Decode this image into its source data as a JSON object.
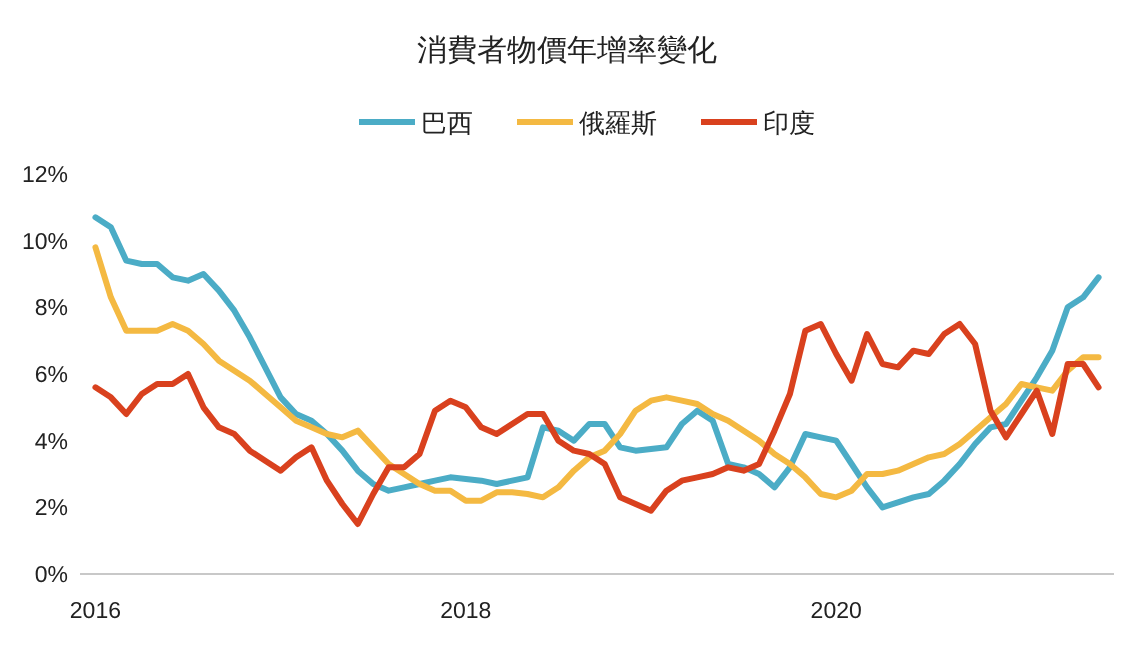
{
  "chart_data": {
    "type": "line",
    "title": "消費者物價年增率變化",
    "legend": "top",
    "grid": false,
    "x": [
      "2016-01",
      "2016-02",
      "2016-03",
      "2016-04",
      "2016-05",
      "2016-06",
      "2016-07",
      "2016-08",
      "2016-09",
      "2016-10",
      "2016-11",
      "2016-12",
      "2017-01",
      "2017-02",
      "2017-03",
      "2017-04",
      "2017-05",
      "2017-06",
      "2017-07",
      "2017-08",
      "2017-09",
      "2017-10",
      "2017-11",
      "2017-12",
      "2018-01",
      "2018-02",
      "2018-03",
      "2018-04",
      "2018-05",
      "2018-06",
      "2018-07",
      "2018-08",
      "2018-09",
      "2018-10",
      "2018-11",
      "2018-12",
      "2019-01",
      "2019-02",
      "2019-03",
      "2019-04",
      "2019-05",
      "2019-06",
      "2019-07",
      "2019-08",
      "2019-09",
      "2019-10",
      "2019-11",
      "2019-12",
      "2020-01",
      "2020-02",
      "2020-03",
      "2020-04",
      "2020-05",
      "2020-06",
      "2020-07",
      "2020-08",
      "2020-09",
      "2020-10",
      "2020-11",
      "2020-12",
      "2021-01",
      "2021-02",
      "2021-03",
      "2021-04",
      "2021-05",
      "2021-06"
    ],
    "xlim": [
      "2015-12",
      "2021-07"
    ],
    "xticks": [
      "2016",
      "2018",
      "2020"
    ],
    "ylim": [
      0,
      12
    ],
    "yticks": [
      {
        "value": 0,
        "label": "0%"
      },
      {
        "value": 2,
        "label": "2%"
      },
      {
        "value": 4,
        "label": "4%"
      },
      {
        "value": 6,
        "label": "6%"
      },
      {
        "value": 8,
        "label": "8%"
      },
      {
        "value": 10,
        "label": "10%"
      },
      {
        "value": 12,
        "label": "12%"
      }
    ],
    "series": [
      {
        "name": "巴西",
        "color": "#4bacc6",
        "values": [
          10.7,
          10.4,
          9.4,
          9.3,
          9.3,
          8.9,
          8.8,
          9.0,
          8.5,
          7.9,
          7.1,
          6.2,
          5.3,
          4.8,
          4.6,
          4.2,
          3.7,
          3.1,
          2.7,
          2.5,
          2.6,
          2.7,
          2.8,
          2.9,
          2.85,
          2.8,
          2.7,
          2.8,
          2.9,
          4.4,
          4.3,
          4.0,
          4.5,
          4.5,
          3.8,
          3.7,
          3.75,
          3.8,
          4.5,
          4.9,
          4.6,
          3.3,
          3.2,
          3.0,
          2.6,
          3.2,
          4.2,
          4.1,
          4.0,
          3.3,
          2.6,
          2.0,
          2.15,
          2.3,
          2.4,
          2.8,
          3.3,
          3.9,
          4.4,
          4.5,
          5.2,
          5.9,
          6.7,
          8.0,
          8.3,
          8.9
        ]
      },
      {
        "name": "俄羅斯",
        "color": "#f4b942",
        "values": [
          9.8,
          8.3,
          7.3,
          7.3,
          7.3,
          7.5,
          7.3,
          6.9,
          6.4,
          6.1,
          5.8,
          5.4,
          5.0,
          4.6,
          4.4,
          4.2,
          4.1,
          4.3,
          3.8,
          3.3,
          3.0,
          2.7,
          2.5,
          2.5,
          2.2,
          2.2,
          2.45,
          2.45,
          2.4,
          2.3,
          2.6,
          3.1,
          3.5,
          3.7,
          4.2,
          4.9,
          5.2,
          5.3,
          5.2,
          5.1,
          4.8,
          4.6,
          4.3,
          4.0,
          3.6,
          3.3,
          2.9,
          2.4,
          2.3,
          2.5,
          3.0,
          3.0,
          3.1,
          3.3,
          3.5,
          3.6,
          3.9,
          4.3,
          4.7,
          5.1,
          5.7,
          5.6,
          5.5,
          6.1,
          6.5,
          6.5
        ]
      },
      {
        "name": "印度",
        "color": "#d9411e",
        "values": [
          5.6,
          5.3,
          4.8,
          5.4,
          5.7,
          5.7,
          6.0,
          5.0,
          4.4,
          4.2,
          3.7,
          3.4,
          3.1,
          3.5,
          3.8,
          2.8,
          2.1,
          1.5,
          2.4,
          3.2,
          3.2,
          3.6,
          4.9,
          5.2,
          5.0,
          4.4,
          4.2,
          4.5,
          4.8,
          4.8,
          4.0,
          3.7,
          3.6,
          3.3,
          2.3,
          2.1,
          1.9,
          2.5,
          2.8,
          2.9,
          3.0,
          3.2,
          3.1,
          3.3,
          4.3,
          5.4,
          7.3,
          7.5,
          6.6,
          5.8,
          7.2,
          6.3,
          6.2,
          6.7,
          6.6,
          7.2,
          7.5,
          6.9,
          4.9,
          4.1,
          4.8,
          5.5,
          4.2,
          6.3,
          6.3,
          5.6
        ]
      }
    ]
  }
}
